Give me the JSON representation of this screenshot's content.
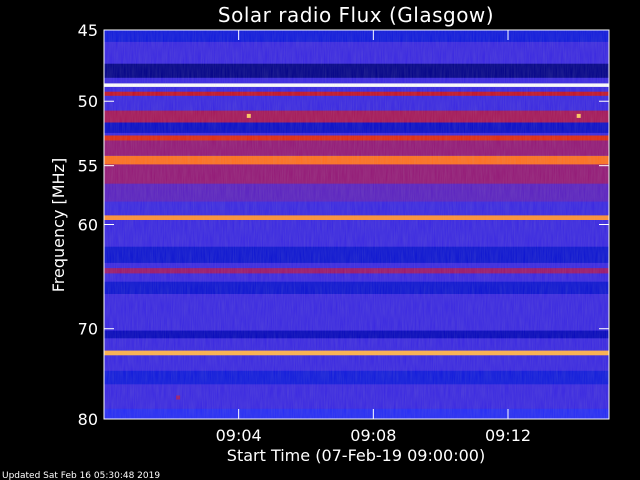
{
  "chart_data": {
    "type": "heatmap",
    "title": "Solar radio Flux (Glasgow)",
    "xlabel": "Start Time (07-Feb-19 09:00:00)",
    "ylabel": "Frequency [MHz]",
    "footer": "Updated Sat Feb 16 05:30:48 2019",
    "x_range_minutes": [
      0,
      15
    ],
    "y_range_mhz": [
      45,
      80
    ],
    "y_scale": "log",
    "y_ticks": [
      {
        "value": 45,
        "label": "45"
      },
      {
        "value": 50,
        "label": "50"
      },
      {
        "value": 55,
        "label": "55"
      },
      {
        "value": 60,
        "label": "60"
      },
      {
        "value": 70,
        "label": "70"
      },
      {
        "value": 80,
        "label": "80"
      }
    ],
    "x_ticks": [
      {
        "value": 4,
        "label": "09:04"
      },
      {
        "value": 8,
        "label": "09:08"
      },
      {
        "value": 12,
        "label": "09:12"
      }
    ],
    "colormap": [
      "#000050",
      "#0000b4",
      "#1a2cff",
      "#7a1aa0",
      "#d01010",
      "#ff5a10",
      "#ffd060",
      "#ffffff"
    ],
    "background_intensity": 0.33,
    "bands": [
      {
        "mhz_from": 45.0,
        "mhz_to": 45.8,
        "intensity": 0.22
      },
      {
        "mhz_from": 47.3,
        "mhz_to": 48.3,
        "intensity": 0.08
      },
      {
        "mhz_from": 48.7,
        "mhz_to": 48.95,
        "intensity": 1.0
      },
      {
        "mhz_from": 49.3,
        "mhz_to": 49.6,
        "intensity": 0.55
      },
      {
        "mhz_from": 50.7,
        "mhz_to": 51.6,
        "intensity": 0.5
      },
      {
        "mhz_from": 51.6,
        "mhz_to": 52.4,
        "intensity": 0.18
      },
      {
        "mhz_from": 52.6,
        "mhz_to": 53.0,
        "intensity": 0.62
      },
      {
        "mhz_from": 53.0,
        "mhz_to": 54.2,
        "intensity": 0.47
      },
      {
        "mhz_from": 54.2,
        "mhz_to": 54.9,
        "intensity": 0.74
      },
      {
        "mhz_from": 54.9,
        "mhz_to": 56.5,
        "intensity": 0.47
      },
      {
        "mhz_from": 56.5,
        "mhz_to": 58.0,
        "intensity": 0.38
      },
      {
        "mhz_from": 59.2,
        "mhz_to": 59.6,
        "intensity": 0.78
      },
      {
        "mhz_from": 62.0,
        "mhz_to": 63.5,
        "intensity": 0.2
      },
      {
        "mhz_from": 64.0,
        "mhz_to": 64.5,
        "intensity": 0.48
      },
      {
        "mhz_from": 65.3,
        "mhz_to": 66.5,
        "intensity": 0.2
      },
      {
        "mhz_from": 70.2,
        "mhz_to": 71.0,
        "intensity": 0.16
      },
      {
        "mhz_from": 72.3,
        "mhz_to": 72.8,
        "intensity": 0.82
      },
      {
        "mhz_from": 74.5,
        "mhz_to": 76.0,
        "intensity": 0.22
      },
      {
        "mhz_from": 78.8,
        "mhz_to": 80.0,
        "intensity": 0.3
      }
    ],
    "hot_spots": [
      {
        "time_min": 4.3,
        "mhz": 51.1,
        "intensity": 0.85
      },
      {
        "time_min": 14.1,
        "mhz": 51.1,
        "intensity": 0.85
      },
      {
        "time_min": 2.2,
        "mhz": 77.5,
        "intensity": 0.48
      }
    ],
    "grid": false,
    "legend": "none"
  }
}
